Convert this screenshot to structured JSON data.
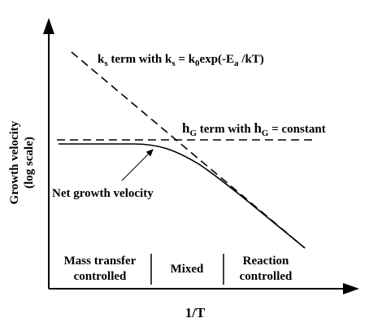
{
  "axes": {
    "y_label_line1": "Growth velocity",
    "y_label_line2": "(log scale)",
    "x_label": "1/T"
  },
  "curves": {
    "ks": {
      "prefix": "k",
      "prefix_sub": "s",
      "text1": " term with k",
      "text1_sub": "s",
      "text2": " = k",
      "text2_sub": "0",
      "text3": "exp(-E",
      "text3_sub": "a",
      "text4": " /kT)"
    },
    "hg": {
      "prefix": "h",
      "prefix_sub": "G",
      "text1": " term with ",
      "text2": "h",
      "text2_sub": "G",
      "text3": " = constant"
    },
    "net_label": "Net growth velocity"
  },
  "regions": [
    {
      "line1": "Mass transfer",
      "line2": "controlled"
    },
    {
      "line1": "Mixed",
      "line2": ""
    },
    {
      "line1": "Reaction",
      "line2": "controlled"
    }
  ]
}
